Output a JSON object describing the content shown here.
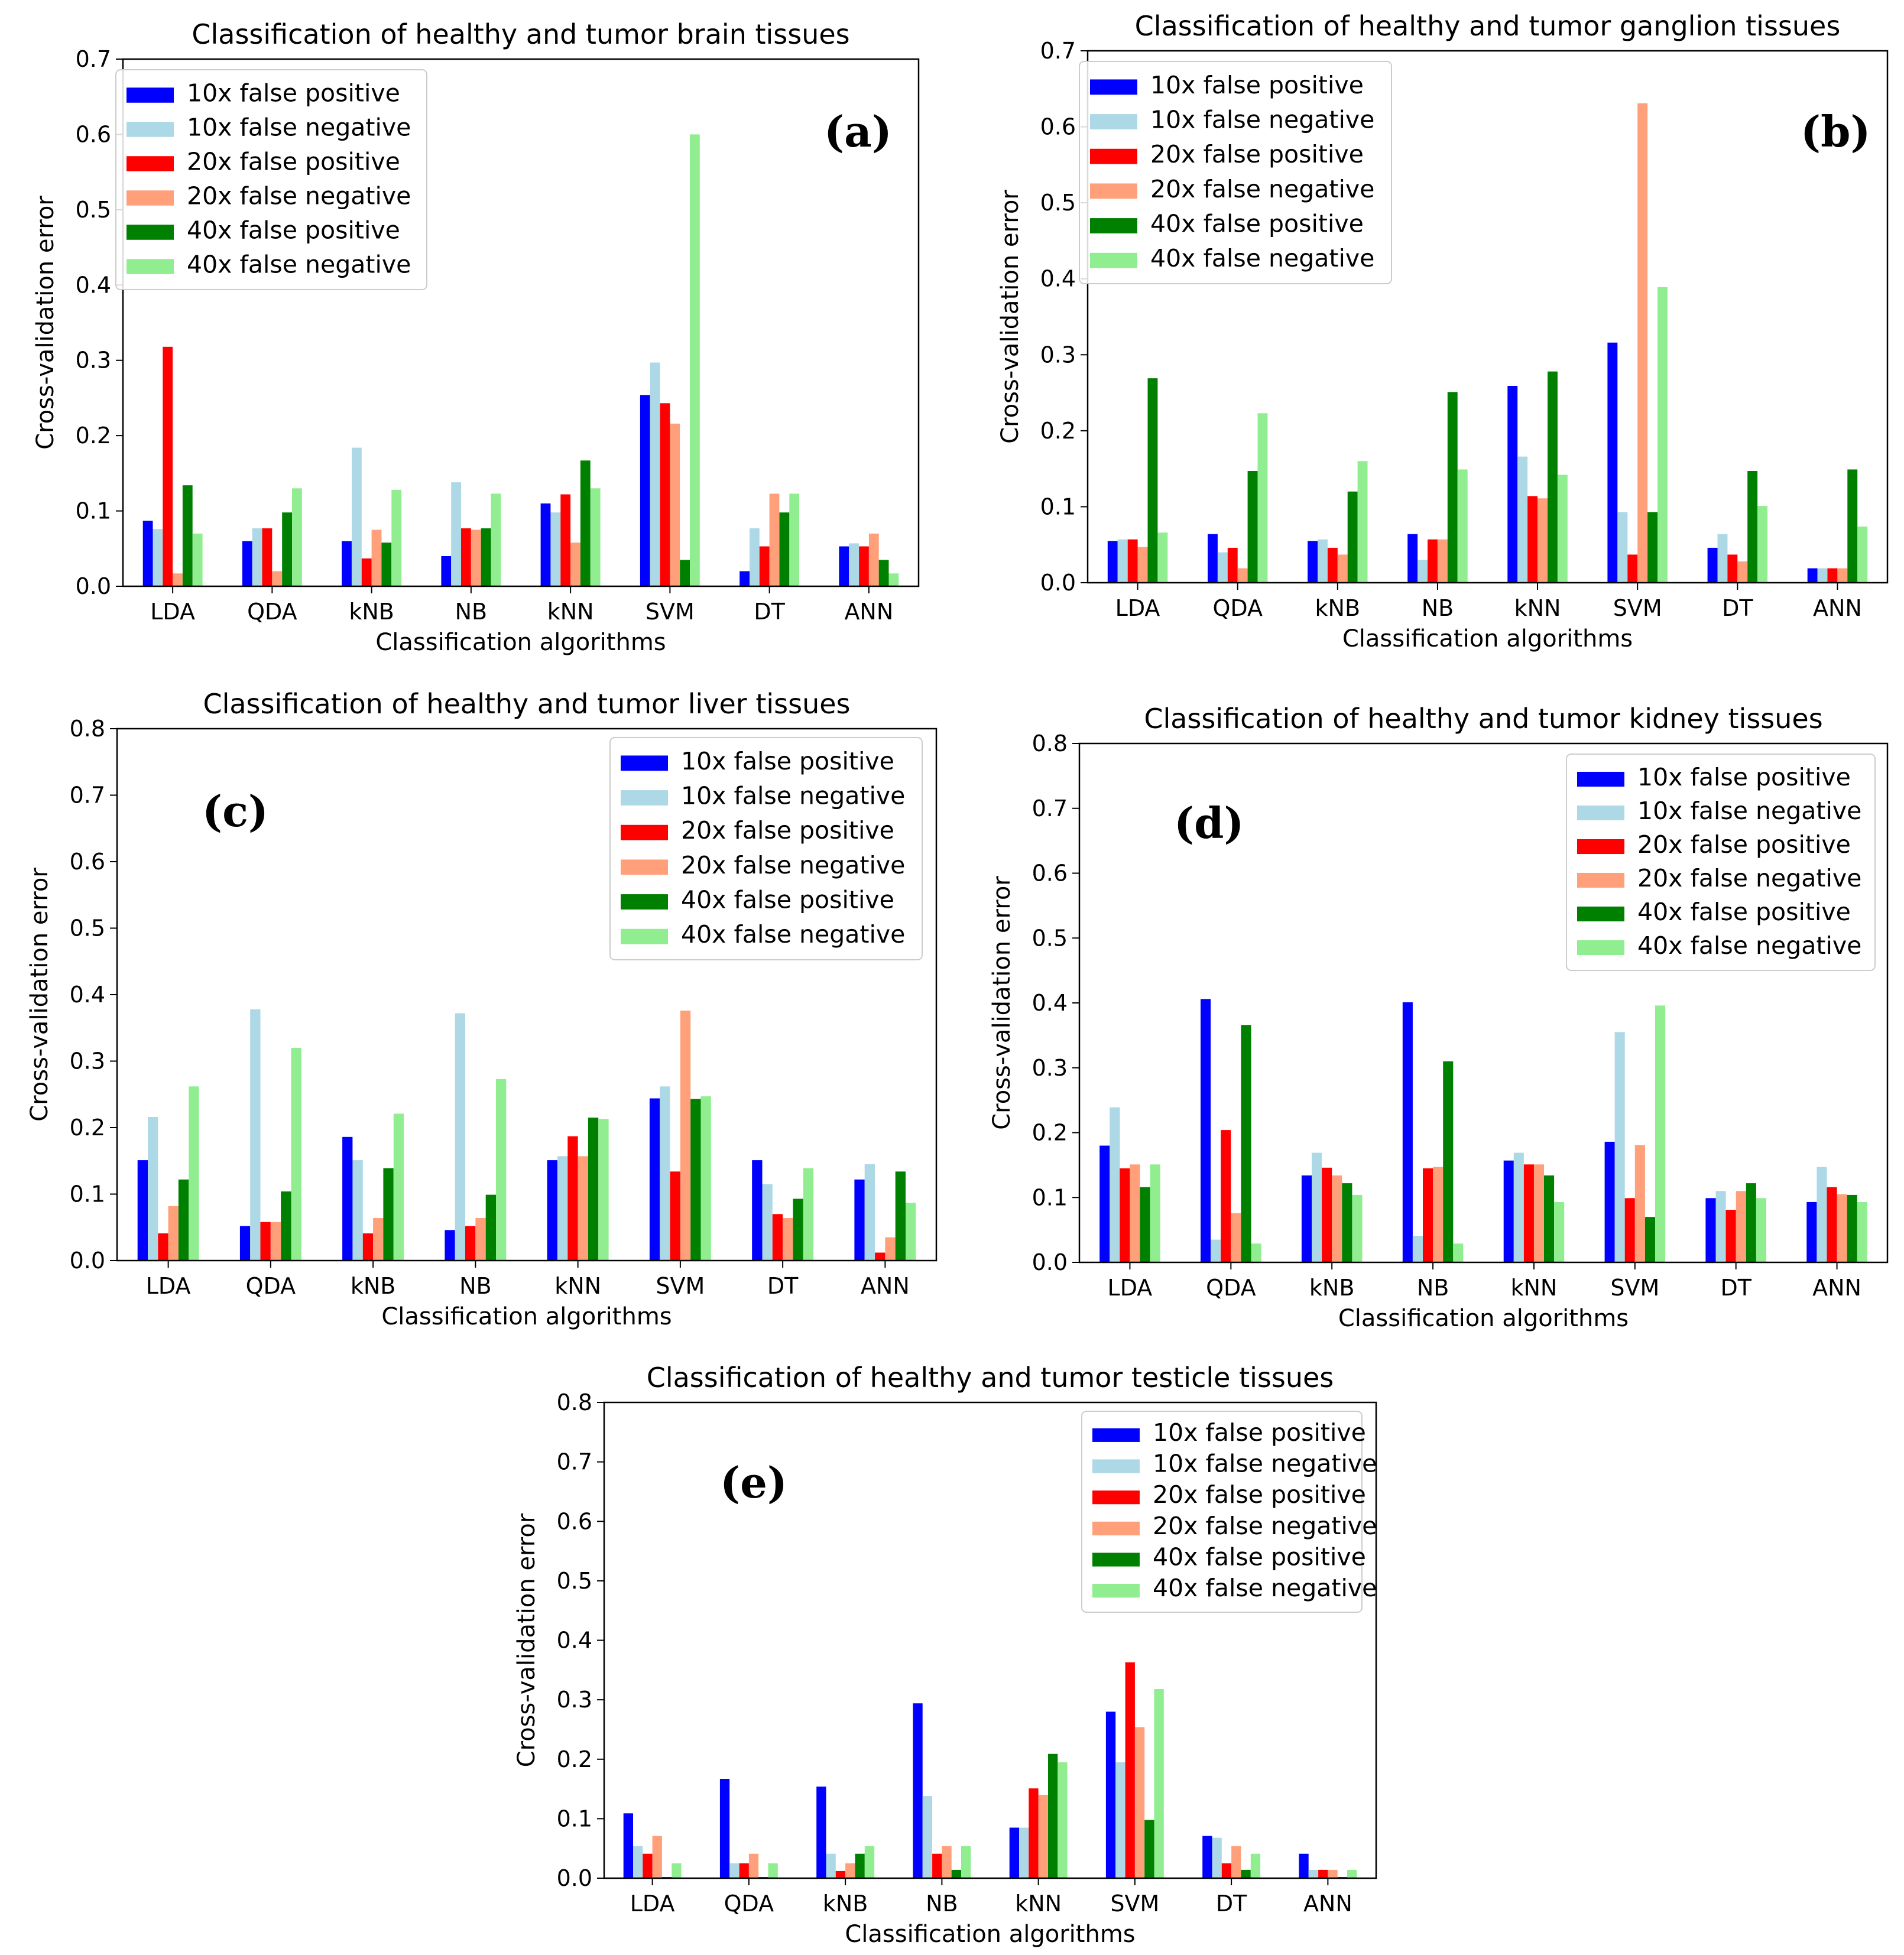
{
  "series_names": [
    "10x false positive",
    "10x false negative",
    "20x false positive",
    "20x false negative",
    "40x false positive",
    "40x false negative"
  ],
  "series_colors": [
    "#0000ff",
    "#add8e6",
    "#ff0000",
    "#ffa07a",
    "#008000",
    "#90ee90"
  ],
  "chart_data": [
    {
      "type": "bar",
      "panel": "(a)",
      "title": "Classification of healthy and tumor brain tissues",
      "xlabel": "Classification algorithms",
      "ylabel": "Cross-validation error",
      "ylim": [
        0,
        0.7
      ],
      "yticks": [
        "0.0",
        "0.1",
        "0.2",
        "0.3",
        "0.4",
        "0.5",
        "0.6",
        "0.7"
      ],
      "legend_position": "top-left",
      "categories": [
        "LDA",
        "QDA",
        "kNB",
        "NB",
        "kNN",
        "SVM",
        "DT",
        "ANN"
      ],
      "series": [
        {
          "name": "10x false positive",
          "values": [
            0.087,
            0.06,
            0.06,
            0.04,
            0.11,
            0.254,
            0.02,
            0.053
          ]
        },
        {
          "name": "10x false negative",
          "values": [
            0.076,
            0.077,
            0.184,
            0.138,
            0.098,
            0.297,
            0.077,
            0.057
          ]
        },
        {
          "name": "20x false positive",
          "values": [
            0.318,
            0.077,
            0.037,
            0.077,
            0.122,
            0.243,
            0.053,
            0.053
          ]
        },
        {
          "name": "20x false negative",
          "values": [
            0.017,
            0.02,
            0.075,
            0.075,
            0.058,
            0.216,
            0.123,
            0.07
          ]
        },
        {
          "name": "40x false positive",
          "values": [
            0.134,
            0.098,
            0.058,
            0.077,
            0.167,
            0.035,
            0.098,
            0.035
          ]
        },
        {
          "name": "40x false negative",
          "values": [
            0.07,
            0.13,
            0.128,
            0.123,
            0.13,
            0.6,
            0.123,
            0.017
          ]
        }
      ]
    },
    {
      "type": "bar",
      "panel": "(b)",
      "title": "Classification of healthy and tumor ganglion tissues",
      "xlabel": "Classification algorithms",
      "ylabel": "Cross-validation error",
      "ylim": [
        0,
        0.7
      ],
      "yticks": [
        "0.0",
        "0.1",
        "0.2",
        "0.3",
        "0.4",
        "0.5",
        "0.6",
        "0.7"
      ],
      "legend_position": "top-left",
      "categories": [
        "LDA",
        "QDA",
        "kNB",
        "NB",
        "kNN",
        "SVM",
        "DT",
        "ANN"
      ],
      "series": [
        {
          "name": "10x false positive",
          "values": [
            0.055,
            0.064,
            0.055,
            0.064,
            0.259,
            0.316,
            0.046,
            0.019
          ]
        },
        {
          "name": "10x false negative",
          "values": [
            0.057,
            0.04,
            0.057,
            0.03,
            0.166,
            0.093,
            0.064,
            0.019
          ]
        },
        {
          "name": "20x false positive",
          "values": [
            0.057,
            0.046,
            0.046,
            0.057,
            0.114,
            0.037,
            0.037,
            0.019
          ]
        },
        {
          "name": "20x false negative",
          "values": [
            0.047,
            0.019,
            0.037,
            0.057,
            0.111,
            0.631,
            0.028,
            0.019
          ]
        },
        {
          "name": "40x false positive",
          "values": [
            0.269,
            0.147,
            0.12,
            0.251,
            0.278,
            0.093,
            0.147,
            0.149
          ]
        },
        {
          "name": "40x false negative",
          "values": [
            0.066,
            0.223,
            0.16,
            0.149,
            0.142,
            0.389,
            0.101,
            0.074
          ]
        }
      ]
    },
    {
      "type": "bar",
      "panel": "(c)",
      "title": "Classification of healthy and tumor liver tissues",
      "xlabel": "Classification algorithms",
      "ylabel": "Cross-validation error",
      "ylim": [
        0,
        0.8
      ],
      "yticks": [
        "0.0",
        "0.1",
        "0.2",
        "0.3",
        "0.4",
        "0.5",
        "0.6",
        "0.7",
        "0.8"
      ],
      "legend_position": "top-right",
      "categories": [
        "LDA",
        "QDA",
        "kNB",
        "NB",
        "kNN",
        "SVM",
        "DT",
        "ANN"
      ],
      "series": [
        {
          "name": "10x false positive",
          "values": [
            0.151,
            0.052,
            0.186,
            0.046,
            0.151,
            0.244,
            0.151,
            0.122
          ]
        },
        {
          "name": "10x false negative",
          "values": [
            0.216,
            0.378,
            0.151,
            0.372,
            0.157,
            0.262,
            0.115,
            0.145
          ]
        },
        {
          "name": "20x false positive",
          "values": [
            0.041,
            0.058,
            0.041,
            0.052,
            0.187,
            0.134,
            0.07,
            0.012
          ]
        },
        {
          "name": "20x false negative",
          "values": [
            0.082,
            0.058,
            0.064,
            0.064,
            0.157,
            0.376,
            0.064,
            0.035
          ]
        },
        {
          "name": "40x false positive",
          "values": [
            0.122,
            0.104,
            0.139,
            0.099,
            0.215,
            0.243,
            0.093,
            0.134
          ]
        },
        {
          "name": "40x false negative",
          "values": [
            0.262,
            0.32,
            0.221,
            0.273,
            0.213,
            0.247,
            0.139,
            0.087
          ]
        }
      ]
    },
    {
      "type": "bar",
      "panel": "(d)",
      "title": "Classification of healthy and tumor kidney tissues",
      "xlabel": "Classification algorithms",
      "ylabel": "Cross-validation error",
      "ylim": [
        0,
        0.8
      ],
      "yticks": [
        "0.0",
        "0.1",
        "0.2",
        "0.3",
        "0.4",
        "0.5",
        "0.6",
        "0.7",
        "0.8"
      ],
      "legend_position": "top-right",
      "categories": [
        "LDA",
        "QDA",
        "kNB",
        "NB",
        "kNN",
        "SVM",
        "DT",
        "ANN"
      ],
      "series": [
        {
          "name": "10x false positive",
          "values": [
            0.18,
            0.406,
            0.134,
            0.401,
            0.157,
            0.186,
            0.099,
            0.093
          ]
        },
        {
          "name": "10x false negative",
          "values": [
            0.239,
            0.035,
            0.169,
            0.041,
            0.169,
            0.355,
            0.11,
            0.147
          ]
        },
        {
          "name": "20x false positive",
          "values": [
            0.145,
            0.204,
            0.146,
            0.145,
            0.151,
            0.099,
            0.081,
            0.116
          ]
        },
        {
          "name": "20x false negative",
          "values": [
            0.151,
            0.076,
            0.134,
            0.147,
            0.151,
            0.181,
            0.11,
            0.105
          ]
        },
        {
          "name": "40x false positive",
          "values": [
            0.116,
            0.366,
            0.122,
            0.31,
            0.134,
            0.07,
            0.122,
            0.104
          ]
        },
        {
          "name": "40x false negative",
          "values": [
            0.151,
            0.029,
            0.104,
            0.029,
            0.093,
            0.396,
            0.099,
            0.093
          ]
        }
      ]
    },
    {
      "type": "bar",
      "panel": "(e)",
      "title": "Classification of healthy and tumor testicle tissues",
      "xlabel": "Classification algorithms",
      "ylabel": "Cross-validation error",
      "ylim": [
        0,
        0.8
      ],
      "yticks": [
        "0.0",
        "0.1",
        "0.2",
        "0.3",
        "0.4",
        "0.5",
        "0.6",
        "0.7",
        "0.8"
      ],
      "legend_position": "top-right",
      "categories": [
        "LDA",
        "QDA",
        "kNB",
        "NB",
        "kNN",
        "SVM",
        "DT",
        "ANN"
      ],
      "series": [
        {
          "name": "10x false positive",
          "values": [
            0.109,
            0.167,
            0.154,
            0.294,
            0.085,
            0.28,
            0.071,
            0.041
          ]
        },
        {
          "name": "10x false negative",
          "values": [
            0.054,
            0.025,
            0.041,
            0.138,
            0.085,
            0.195,
            0.068,
            0.014
          ]
        },
        {
          "name": "20x false positive",
          "values": [
            0.041,
            0.025,
            0.012,
            0.041,
            0.151,
            0.363,
            0.025,
            0.014
          ]
        },
        {
          "name": "20x false negative",
          "values": [
            0.071,
            0.041,
            0.025,
            0.054,
            0.14,
            0.254,
            0.054,
            0.014
          ]
        },
        {
          "name": "40x false positive",
          "values": [
            0.002,
            0.002,
            0.041,
            0.014,
            0.209,
            0.098,
            0.014,
            0.002
          ]
        },
        {
          "name": "40x false negative",
          "values": [
            0.025,
            0.025,
            0.054,
            0.054,
            0.195,
            0.318,
            0.041,
            0.014
          ]
        }
      ]
    }
  ]
}
